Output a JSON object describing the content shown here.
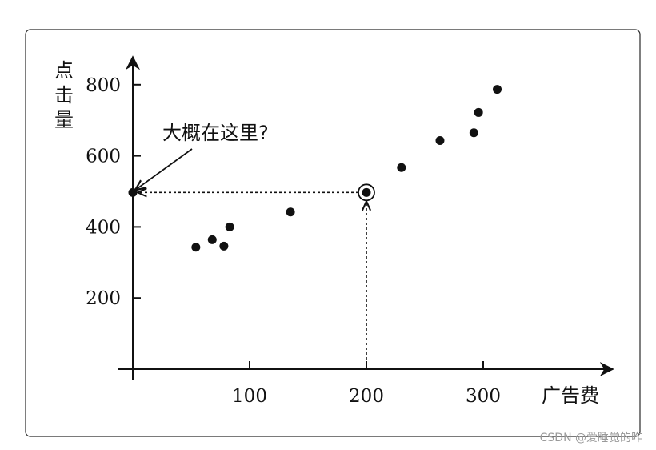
{
  "chart_data": {
    "type": "scatter",
    "xlabel": "广告费",
    "ylabel": "点击量",
    "xlim": [
      0,
      410
    ],
    "ylim": [
      0,
      900
    ],
    "xticks": [
      100,
      200,
      300
    ],
    "yticks": [
      200,
      400,
      600,
      800
    ],
    "grid": false,
    "points": [
      {
        "x": 54,
        "y": 343
      },
      {
        "x": 68,
        "y": 364
      },
      {
        "x": 78,
        "y": 346
      },
      {
        "x": 83,
        "y": 400
      },
      {
        "x": 135,
        "y": 442
      },
      {
        "x": 230,
        "y": 567
      },
      {
        "x": 263,
        "y": 643
      },
      {
        "x": 292,
        "y": 665
      },
      {
        "x": 296,
        "y": 722
      },
      {
        "x": 312,
        "y": 787
      }
    ],
    "highlight": {
      "x": 200,
      "y": 497
    },
    "y_intercept_point": {
      "x": 0,
      "y": 497
    },
    "annotation": "大概在这里?"
  },
  "watermark": "CSDN @爱睡觉的咋"
}
